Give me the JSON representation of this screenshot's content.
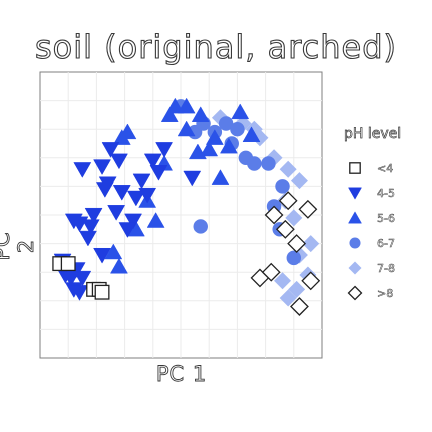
{
  "chart_data": {
    "type": "scatter",
    "title": "soil (original, arched)",
    "xlabel": "PC 1",
    "ylabel": "PC 2",
    "xlim": [
      0,
      100
    ],
    "ylim": [
      0,
      100
    ],
    "grid": true,
    "legend_placement": "right",
    "legend_title": "pH level",
    "series": [
      {
        "name": "<4",
        "marker": "square",
        "color": "#ffffff",
        "points": [
          [
            7,
            33
          ],
          [
            10,
            33
          ],
          [
            19,
            24
          ],
          [
            21,
            24
          ],
          [
            22,
            23
          ]
        ]
      },
      {
        "name": "4-5",
        "marker": "triangle-down",
        "color": "#1f3de0",
        "points": [
          [
            8,
            34
          ],
          [
            9,
            29
          ],
          [
            11,
            28
          ],
          [
            12,
            24
          ],
          [
            13,
            31
          ],
          [
            14,
            23
          ],
          [
            15,
            28
          ],
          [
            12,
            48
          ],
          [
            14,
            47
          ],
          [
            18,
            46
          ],
          [
            17,
            42
          ],
          [
            19,
            50
          ],
          [
            22,
            36
          ],
          [
            23,
            59
          ],
          [
            27,
            51
          ],
          [
            29,
            58
          ],
          [
            33,
            48
          ],
          [
            31,
            45
          ],
          [
            36,
            62
          ],
          [
            38,
            57
          ],
          [
            15,
            66
          ],
          [
            22,
            67
          ],
          [
            24,
            61
          ],
          [
            25,
            73
          ],
          [
            28,
            69
          ],
          [
            34,
            56
          ],
          [
            42,
            65
          ],
          [
            44,
            73
          ],
          [
            54,
            63
          ],
          [
            40,
            69
          ]
        ]
      },
      {
        "name": "5-6",
        "marker": "triangle-up",
        "color": "#2a52e8",
        "points": [
          [
            26,
            37
          ],
          [
            28,
            32
          ],
          [
            34,
            45
          ],
          [
            38,
            55
          ],
          [
            41,
            48
          ],
          [
            46,
            85
          ],
          [
            48,
            88
          ],
          [
            52,
            88
          ],
          [
            57,
            85
          ],
          [
            60,
            73
          ],
          [
            64,
            63
          ],
          [
            67,
            74
          ],
          [
            62,
            77
          ],
          [
            71,
            86
          ],
          [
            75,
            78
          ],
          [
            29,
            77
          ],
          [
            31,
            79
          ],
          [
            52,
            80
          ],
          [
            56,
            72
          ],
          [
            44,
            68
          ]
        ]
      },
      {
        "name": "6-7",
        "marker": "circle",
        "color": "#5b7de8",
        "points": [
          [
            50,
            88
          ],
          [
            55,
            79
          ],
          [
            58,
            82
          ],
          [
            62,
            79
          ],
          [
            66,
            82
          ],
          [
            70,
            80
          ],
          [
            68,
            75
          ],
          [
            73,
            70
          ],
          [
            76,
            68
          ],
          [
            81,
            68
          ],
          [
            86,
            60
          ],
          [
            83,
            53
          ],
          [
            85,
            45
          ],
          [
            57,
            46
          ],
          [
            90,
            35
          ]
        ]
      },
      {
        "name": "7-8",
        "marker": "diamond",
        "color": "#a4b8f2",
        "points": [
          [
            64,
            84
          ],
          [
            72,
            82
          ],
          [
            76,
            80
          ],
          [
            78,
            77
          ],
          [
            83,
            70
          ],
          [
            88,
            66
          ],
          [
            92,
            62
          ],
          [
            87,
            55
          ],
          [
            90,
            49
          ],
          [
            86,
            27
          ],
          [
            88,
            21
          ],
          [
            91,
            24
          ],
          [
            95,
            29
          ],
          [
            92,
            36
          ],
          [
            96,
            40
          ]
        ]
      },
      {
        "name": ">8",
        "marker": "diamond-open",
        "color": "#ffffff",
        "points": [
          [
            83,
            50
          ],
          [
            88,
            55
          ],
          [
            91,
            40
          ],
          [
            95,
            52
          ],
          [
            87,
            45
          ],
          [
            78,
            28
          ],
          [
            82,
            30
          ],
          [
            96,
            27
          ],
          [
            92,
            18
          ]
        ]
      }
    ]
  }
}
